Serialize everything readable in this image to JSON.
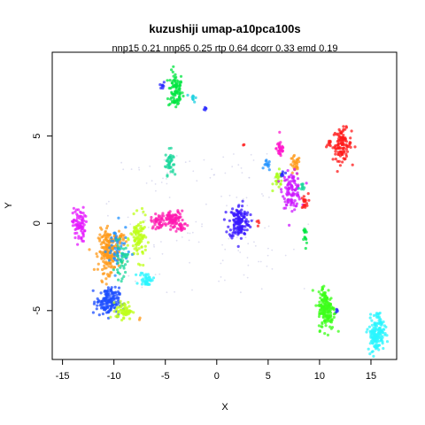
{
  "chart_data": {
    "type": "scatter",
    "title": "kuzushiji umap-a10pca100s",
    "subtitle": "nnp15 0.21 nnp65 0.25 rtp 0.64 dcorr 0.33 emd 0.19",
    "xlabel": "X",
    "ylabel": "Y",
    "xlim": [
      -16,
      17.5
    ],
    "ylim": [
      -7.8,
      9.8
    ],
    "xticks": [
      -15,
      -10,
      -5,
      0,
      5,
      10,
      15
    ],
    "yticks": [
      -5,
      0,
      5
    ],
    "grid": false,
    "legend": "none",
    "clusters": [
      {
        "color": "#00E640",
        "cx": -4.0,
        "cy": 7.6,
        "sx": 0.35,
        "sy": 0.55,
        "n": 90
      },
      {
        "color": "#2A2AFF",
        "cx": -5.3,
        "cy": 7.9,
        "sx": 0.12,
        "sy": 0.12,
        "n": 8
      },
      {
        "color": "#1ED0E0",
        "cx": -2.3,
        "cy": 7.2,
        "sx": 0.15,
        "sy": 0.12,
        "n": 10
      },
      {
        "color": "#2A2AFF",
        "cx": -1.1,
        "cy": 6.6,
        "sx": 0.1,
        "sy": 0.08,
        "n": 5
      },
      {
        "color": "#1AD79B",
        "cx": -4.6,
        "cy": 3.5,
        "sx": 0.2,
        "sy": 0.35,
        "n": 40
      },
      {
        "color": "#FF1A1A",
        "cx": 12.2,
        "cy": 4.5,
        "sx": 0.45,
        "sy": 0.45,
        "n": 110
      },
      {
        "color": "#FF1A1A",
        "cx": 10.9,
        "cy": 4.5,
        "sx": 0.15,
        "sy": 0.2,
        "n": 8
      },
      {
        "color": "#FF1A1A",
        "cx": 2.6,
        "cy": 4.5,
        "sx": 0.05,
        "sy": 0.05,
        "n": 2
      },
      {
        "color": "#FF1ACC",
        "cx": 6.2,
        "cy": 4.3,
        "sx": 0.2,
        "sy": 0.28,
        "n": 35
      },
      {
        "color": "#FF9A1A",
        "cx": 7.6,
        "cy": 3.3,
        "sx": 0.25,
        "sy": 0.28,
        "n": 30
      },
      {
        "color": "#1E90FF",
        "cx": 4.9,
        "cy": 3.3,
        "sx": 0.15,
        "sy": 0.15,
        "n": 12
      },
      {
        "color": "#AAFF1A",
        "cx": 6.0,
        "cy": 2.5,
        "sx": 0.25,
        "sy": 0.25,
        "n": 25
      },
      {
        "color": "#2A2AFF",
        "cx": 6.4,
        "cy": 2.8,
        "sx": 0.12,
        "sy": 0.12,
        "n": 8
      },
      {
        "color": "#CC1AFF",
        "cx": 7.3,
        "cy": 1.9,
        "sx": 0.45,
        "sy": 0.5,
        "n": 110
      },
      {
        "color": "#FF1A1A",
        "cx": 8.5,
        "cy": 1.2,
        "sx": 0.2,
        "sy": 0.25,
        "n": 20
      },
      {
        "color": "#1AD79B",
        "cx": 8.3,
        "cy": 2.0,
        "sx": 0.15,
        "sy": 0.15,
        "n": 10
      },
      {
        "color": "#00E640",
        "cx": 8.6,
        "cy": -0.8,
        "sx": 0.08,
        "sy": 0.35,
        "n": 15
      },
      {
        "color": "#3A1AFF",
        "cx": 2.2,
        "cy": 0.1,
        "sx": 0.5,
        "sy": 0.5,
        "n": 150
      },
      {
        "color": "#FF1A1A",
        "cx": 3.9,
        "cy": 0.0,
        "sx": 0.1,
        "sy": 0.08,
        "n": 4
      },
      {
        "color": "#E61AFF",
        "cx": -13.4,
        "cy": -0.1,
        "sx": 0.3,
        "sy": 0.5,
        "n": 80
      },
      {
        "color": "#FF1AB0",
        "cx": -4.2,
        "cy": 0.2,
        "sx": 0.5,
        "sy": 0.25,
        "n": 90
      },
      {
        "color": "#FF1AB0",
        "cx": -5.7,
        "cy": 0.1,
        "sx": 0.35,
        "sy": 0.2,
        "n": 40
      },
      {
        "color": "#FF1AB0",
        "cx": -3.5,
        "cy": -0.3,
        "sx": 0.25,
        "sy": 0.15,
        "n": 15
      },
      {
        "color": "#FF9A1A",
        "cx": -10.5,
        "cy": -1.6,
        "sx": 0.5,
        "sy": 0.6,
        "n": 200
      },
      {
        "color": "#FF9A1A",
        "cx": -9.3,
        "cy": -0.9,
        "sx": 0.18,
        "sy": 0.2,
        "n": 20
      },
      {
        "color": "#BFFF1A",
        "cx": -7.6,
        "cy": -0.9,
        "sx": 0.4,
        "sy": 0.6,
        "n": 100
      },
      {
        "color": "#1E90FF",
        "cx": -9.7,
        "cy": -1.5,
        "sx": 0.5,
        "sy": 0.7,
        "n": 50
      },
      {
        "color": "#1AD79B",
        "cx": -9.3,
        "cy": -2.2,
        "sx": 0.3,
        "sy": 0.5,
        "n": 40
      },
      {
        "color": "#2AF5FF",
        "cx": -6.8,
        "cy": -3.2,
        "sx": 0.35,
        "sy": 0.2,
        "n": 40
      },
      {
        "color": "#1E4FFF",
        "cx": -10.6,
        "cy": -4.5,
        "sx": 0.55,
        "sy": 0.4,
        "n": 160
      },
      {
        "color": "#BFFF1A",
        "cx": -9.0,
        "cy": -5.0,
        "sx": 0.4,
        "sy": 0.25,
        "n": 60
      },
      {
        "color": "#FF9A1A",
        "cx": -7.5,
        "cy": -5.4,
        "sx": 0.05,
        "sy": 0.05,
        "n": 2
      },
      {
        "color": "#3CFF1A",
        "cx": 10.7,
        "cy": -5.0,
        "sx": 0.4,
        "sy": 0.55,
        "n": 150
      },
      {
        "color": "#3CFF1A",
        "cx": 10.4,
        "cy": -4.2,
        "sx": 0.2,
        "sy": 0.35,
        "n": 30
      },
      {
        "color": "#2A2AFF",
        "cx": 11.7,
        "cy": -5.0,
        "sx": 0.08,
        "sy": 0.08,
        "n": 4
      },
      {
        "color": "#2AF5FF",
        "cx": 15.5,
        "cy": -6.4,
        "sx": 0.4,
        "sy": 0.45,
        "n": 130
      },
      {
        "color": "#2AF5FF",
        "cx": 15.7,
        "cy": -5.6,
        "sx": 0.3,
        "sy": 0.25,
        "n": 30
      }
    ],
    "diffuse_points": {
      "color": "#C8C8E6",
      "n": 140,
      "x_range": [
        -11,
        9
      ],
      "y_range": [
        -4,
        4
      ]
    }
  }
}
